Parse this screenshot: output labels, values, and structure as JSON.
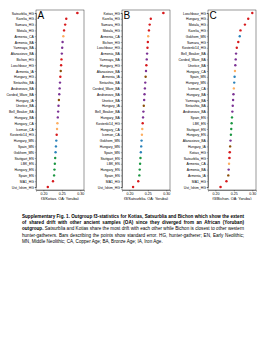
{
  "chart_data": [
    {
      "type": "dot",
      "title": "A",
      "x_label": "f3(Kotias, OA; Yoruba)",
      "orientation": "horizontal",
      "xlim": [
        0.18,
        0.31
      ],
      "xticks": [
        {
          "value": 0.2,
          "label": "0.20"
        },
        {
          "value": 0.25,
          "label": "0.25"
        },
        {
          "value": 0.3,
          "label": "0.30"
        }
      ],
      "categories": [
        "Satsurblia_HG",
        "Karelia_HG",
        "Samara_HG",
        "Motala_HG",
        "Armenia_CA",
        "Armenia_BA",
        "Yamnaya_BA",
        "Afanasievo_BA",
        "Bichon_HG",
        "Loschbour_HG",
        "Armenia_IA",
        "Hungary_HG",
        "Sintashta_BA",
        "Andronovo_BA",
        "Corded_Ware_BA",
        "Hungary_IA",
        "Unetice_BA",
        "Bell_Beaker_BA",
        "Hungary_BA",
        "Hungary_CA",
        "Iceman_CA",
        "Kostenki14_HG",
        "Hungary_MN",
        "Spain_MN",
        "Gokhem_MN",
        "Stuttgart_EN",
        "LBK_EN",
        "Hungary_EN",
        "Spain_EN",
        "MA1_HG",
        "Ust_Ishim_HG"
      ],
      "values": [
        0.292,
        0.262,
        0.259,
        0.256,
        0.254,
        0.252,
        0.251,
        0.25,
        0.249,
        0.248,
        0.247,
        0.246,
        0.245,
        0.244,
        0.243,
        0.242,
        0.241,
        0.24,
        0.239,
        0.238,
        0.237,
        0.236,
        0.235,
        0.234,
        0.233,
        0.232,
        0.231,
        0.23,
        0.229,
        0.226,
        0.212
      ],
      "errors": [
        0.004,
        0.002,
        0.002,
        0.002,
        0.002,
        0.002,
        0.002,
        0.002,
        0.002,
        0.002,
        0.002,
        0.002,
        0.002,
        0.002,
        0.002,
        0.002,
        0.002,
        0.002,
        0.002,
        0.002,
        0.002,
        0.002,
        0.002,
        0.002,
        0.002,
        0.002,
        0.002,
        0.002,
        0.002,
        0.002,
        0.003
      ],
      "colors": [
        "#d7191c",
        "#d7191c",
        "#d7191c",
        "#d7191c",
        "#fdae61",
        "#7b3294",
        "#7b3294",
        "#7b3294",
        "#d7191c",
        "#d7191c",
        "#8c510a",
        "#d7191c",
        "#7b3294",
        "#7b3294",
        "#7b3294",
        "#8c510a",
        "#7b3294",
        "#7b3294",
        "#7b3294",
        "#fdae61",
        "#fdae61",
        "#d7191c",
        "#2b83ba",
        "#2b83ba",
        "#2b83ba",
        "#1a9641",
        "#1a9641",
        "#1a9641",
        "#1a9641",
        "#d7191c",
        "#d7191c"
      ]
    },
    {
      "type": "dot",
      "title": "B",
      "x_label": "f3(Satsurblia, OA; Yoruba)",
      "orientation": "horizontal",
      "xlim": [
        0.18,
        0.31
      ],
      "xticks": [
        {
          "value": 0.2,
          "label": "0.20"
        },
        {
          "value": 0.25,
          "label": "0.25"
        },
        {
          "value": 0.3,
          "label": "0.30"
        }
      ],
      "categories": [
        "Kotias_HG",
        "Karelia_HG",
        "Samara_HG",
        "Motala_HG",
        "Armenia_CA",
        "Bichon_HG",
        "Loschbour_HG",
        "Armenia_BA",
        "Yamnaya_BA",
        "Hungary_HG",
        "Afanasievo_BA",
        "Armenia_IA",
        "Sintashta_BA",
        "Corded_Ware_BA",
        "Andronovo_BA",
        "Unetice_BA",
        "Hungary_IA",
        "Bell_Beaker_BA",
        "Hungary_BA",
        "Kostenki14_HG",
        "Hungary_CA",
        "Iceman_CA",
        "Gokhem_MN",
        "Hungary_MN",
        "Spain_MN",
        "Stuttgart_EN",
        "LBK_EN",
        "Hungary_EN",
        "Spain_EN",
        "MA1_HG",
        "Ust_Ishim_HG"
      ],
      "values": [
        0.292,
        0.258,
        0.255,
        0.253,
        0.251,
        0.25,
        0.249,
        0.248,
        0.247,
        0.246,
        0.245,
        0.244,
        0.243,
        0.242,
        0.241,
        0.24,
        0.239,
        0.238,
        0.237,
        0.236,
        0.235,
        0.234,
        0.233,
        0.232,
        0.231,
        0.23,
        0.229,
        0.228,
        0.227,
        0.224,
        0.21
      ],
      "errors": [
        0.004,
        0.002,
        0.002,
        0.002,
        0.002,
        0.002,
        0.002,
        0.002,
        0.002,
        0.002,
        0.002,
        0.002,
        0.002,
        0.002,
        0.002,
        0.002,
        0.002,
        0.002,
        0.002,
        0.002,
        0.002,
        0.002,
        0.002,
        0.002,
        0.002,
        0.002,
        0.002,
        0.002,
        0.002,
        0.002,
        0.003
      ],
      "colors": [
        "#d7191c",
        "#d7191c",
        "#d7191c",
        "#d7191c",
        "#fdae61",
        "#d7191c",
        "#d7191c",
        "#7b3294",
        "#7b3294",
        "#d7191c",
        "#7b3294",
        "#8c510a",
        "#7b3294",
        "#7b3294",
        "#7b3294",
        "#7b3294",
        "#8c510a",
        "#7b3294",
        "#7b3294",
        "#d7191c",
        "#fdae61",
        "#fdae61",
        "#2b83ba",
        "#2b83ba",
        "#2b83ba",
        "#1a9641",
        "#1a9641",
        "#1a9641",
        "#1a9641",
        "#d7191c",
        "#d7191c"
      ]
    },
    {
      "type": "dot",
      "title": "C",
      "x_label": "f3(Bichon, OA; Yoruba)",
      "orientation": "horizontal",
      "xlim": [
        0.18,
        0.31
      ],
      "xticks": [
        {
          "value": 0.2,
          "label": "0.20"
        },
        {
          "value": 0.25,
          "label": "0.25"
        },
        {
          "value": 0.3,
          "label": "0.30"
        }
      ],
      "categories": [
        "Loschbour_HG",
        "Hungary_HG",
        "Motala_HG",
        "Karelia_HG",
        "Gokhem_MN",
        "Samara_HG",
        "Kostenki14_HG",
        "Bell_Beaker_BA",
        "Corded_Ware_BA",
        "Unetice_BA",
        "Hungary_CA",
        "Spain_MN",
        "Hungary_MN",
        "Iceman_CA",
        "Hungary_BA",
        "Yamnaya_BA",
        "Sintashta_BA",
        "Andronovo_BA",
        "Spain_EN",
        "LBK_EN",
        "Stuttgart_EN",
        "Hungary_EN",
        "Afanasievo_BA",
        "Hungary_IA",
        "Kotias_HG",
        "Satsurblia_HG",
        "Armenia_CA",
        "Armenia_BA",
        "Armenia_IA",
        "MA1_HG",
        "Ust_Ishim_HG"
      ],
      "values": [
        0.3,
        0.289,
        0.28,
        0.268,
        0.266,
        0.262,
        0.258,
        0.256,
        0.255,
        0.254,
        0.253,
        0.252,
        0.251,
        0.25,
        0.249,
        0.248,
        0.247,
        0.246,
        0.245,
        0.244,
        0.243,
        0.242,
        0.241,
        0.24,
        0.239,
        0.238,
        0.237,
        0.236,
        0.235,
        0.23,
        0.214
      ],
      "errors": [
        0.002,
        0.002,
        0.002,
        0.002,
        0.002,
        0.002,
        0.002,
        0.002,
        0.002,
        0.002,
        0.002,
        0.002,
        0.002,
        0.002,
        0.002,
        0.002,
        0.002,
        0.002,
        0.002,
        0.002,
        0.002,
        0.002,
        0.002,
        0.002,
        0.004,
        0.004,
        0.002,
        0.002,
        0.002,
        0.002,
        0.003
      ],
      "colors": [
        "#d7191c",
        "#d7191c",
        "#d7191c",
        "#d7191c",
        "#2b83ba",
        "#d7191c",
        "#d7191c",
        "#7b3294",
        "#7b3294",
        "#7b3294",
        "#fdae61",
        "#2b83ba",
        "#2b83ba",
        "#fdae61",
        "#7b3294",
        "#7b3294",
        "#7b3294",
        "#7b3294",
        "#1a9641",
        "#1a9641",
        "#1a9641",
        "#1a9641",
        "#7b3294",
        "#8c510a",
        "#d7191c",
        "#d7191c",
        "#fdae61",
        "#7b3294",
        "#8c510a",
        "#d7191c",
        "#d7191c"
      ]
    }
  ],
  "caption": {
    "title": "Supplementary Fig. 1. Outgroup f3-statistics for Kotias, Satsurblia and Bichon which show the extent of shared drift with other ancient samples (OA) since they diverged from an African (Yoruban) outgroup.",
    "text": "Satsurblia and Kotias share the most drift with each other while Bichon is closest to other western hunter-gatherers. Bars describing the points show standard error. HG, hunter-gatherer; EN, Early Neolithic; MN, Middle Neolithic; CA, Copper Age; BA, Bronze Age; IA, Iron Age."
  }
}
